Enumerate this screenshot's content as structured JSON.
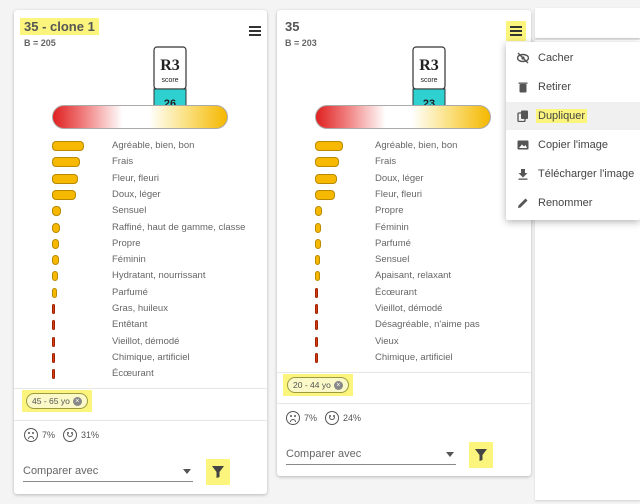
{
  "cards": [
    {
      "title": "35 - clone 1",
      "b_value": "B = 205",
      "score": "26",
      "logo_text": "R3",
      "logo_sub": "score",
      "attributes": [
        {
          "label": "Agréable, bien, bon",
          "value": 0.32,
          "type": "pos"
        },
        {
          "label": "Frais",
          "value": 0.28,
          "type": "pos"
        },
        {
          "label": "Fleur, fleuri",
          "value": 0.26,
          "type": "pos"
        },
        {
          "label": "Doux, léger",
          "value": 0.24,
          "type": "pos"
        },
        {
          "label": "Sensuel",
          "value": 0.09,
          "type": "pos"
        },
        {
          "label": "Raffiné, haut de gamme, classe",
          "value": 0.08,
          "type": "pos"
        },
        {
          "label": "Propre",
          "value": 0.07,
          "type": "pos"
        },
        {
          "label": "Féminin",
          "value": 0.07,
          "type": "pos"
        },
        {
          "label": "Hydratant, nourrissant",
          "value": 0.06,
          "type": "pos"
        },
        {
          "label": "Parfumé",
          "value": 0.05,
          "type": "pos"
        },
        {
          "label": "Gras, huileux",
          "value": 0.02,
          "type": "neg"
        },
        {
          "label": "Entêtant",
          "value": 0.02,
          "type": "neg"
        },
        {
          "label": "Vieillot, démodé",
          "value": 0.02,
          "type": "neg"
        },
        {
          "label": "Chimique, artificiel",
          "value": 0.02,
          "type": "neg"
        },
        {
          "label": "Écœurant",
          "value": 0.02,
          "type": "neg"
        }
      ],
      "chip": "45 - 65 yo",
      "chip_close": "×",
      "sad_pct": "7%",
      "happy_pct": "31%",
      "compare_placeholder": "Comparer avec"
    },
    {
      "title": "35",
      "b_value": "B = 203",
      "score": "23",
      "logo_text": "R3",
      "logo_sub": "score",
      "attributes": [
        {
          "label": "Agréable, bien, bon",
          "value": 0.28,
          "type": "pos"
        },
        {
          "label": "Frais",
          "value": 0.24,
          "type": "pos"
        },
        {
          "label": "Doux, léger",
          "value": 0.22,
          "type": "pos"
        },
        {
          "label": "Fleur, fleuri",
          "value": 0.2,
          "type": "pos"
        },
        {
          "label": "Propre",
          "value": 0.07,
          "type": "pos"
        },
        {
          "label": "Féminin",
          "value": 0.06,
          "type": "pos"
        },
        {
          "label": "Parfumé",
          "value": 0.06,
          "type": "pos"
        },
        {
          "label": "Sensuel",
          "value": 0.05,
          "type": "pos"
        },
        {
          "label": "Apaisant, relaxant",
          "value": 0.05,
          "type": "pos"
        },
        {
          "label": "Écœurant",
          "value": 0.02,
          "type": "neg"
        },
        {
          "label": "Vieillot, démodé",
          "value": 0.02,
          "type": "neg"
        },
        {
          "label": "Désagréable, n'aime pas",
          "value": 0.02,
          "type": "neg"
        },
        {
          "label": "Vieux",
          "value": 0.02,
          "type": "neg"
        },
        {
          "label": "Chimique, artificiel",
          "value": 0.02,
          "type": "neg"
        }
      ],
      "chip": "20 - 44 yo",
      "chip_close": "×",
      "sad_pct": "7%",
      "happy_pct": "24%",
      "compare_placeholder": "Comparer avec"
    }
  ],
  "menu": {
    "items": [
      {
        "label": "Cacher",
        "icon": "eye-off-icon"
      },
      {
        "label": "Retirer",
        "icon": "trash-icon"
      },
      {
        "label": "Dupliquer",
        "icon": "copy-icon"
      },
      {
        "label": "Copier l'image",
        "icon": "image-icon"
      },
      {
        "label": "Télécharger l'image",
        "icon": "download-icon"
      },
      {
        "label": "Renommer",
        "icon": "pencil-icon"
      }
    ]
  },
  "colors": {
    "highlight": "#fbf57d",
    "bar_pos": "#f6b800",
    "bar_neg": "#d04010",
    "score_teal": "#2fd0d0"
  }
}
